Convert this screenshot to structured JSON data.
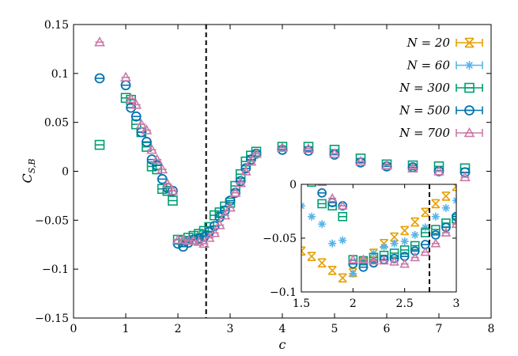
{
  "chart_data": {
    "type": "scatter",
    "title": "",
    "xlabel": "c",
    "ylabel": "C_{S,B}",
    "xlim": [
      0,
      8
    ],
    "ylim": [
      -0.15,
      0.15
    ],
    "xticks": [
      "0",
      "1",
      "2",
      "3",
      "4",
      "5",
      "6",
      "7",
      "8"
    ],
    "yticks": [
      "0.15",
      "0.1",
      "0.05",
      "0",
      "−0.05",
      "−0.1",
      "−0.15"
    ],
    "xtick_values": [
      0,
      1,
      2,
      3,
      4,
      5,
      6,
      7,
      8
    ],
    "ytick_values": [
      0.15,
      0.1,
      0.05,
      0,
      -0.05,
      -0.1,
      -0.15
    ],
    "vline": 2.54,
    "legend_position": "top-right",
    "series": [
      {
        "name": "N = 20",
        "marker": "x",
        "color": "#e69f00",
        "x": [
          1.5,
          1.6,
          1.7,
          1.8,
          1.9,
          2.0,
          2.1,
          2.2,
          2.3,
          2.4,
          2.5,
          2.6,
          2.7,
          2.8,
          2.9,
          3.0
        ],
        "y": [
          -0.062,
          -0.067,
          -0.073,
          -0.08,
          -0.087,
          -0.082,
          -0.071,
          -0.064,
          -0.055,
          -0.049,
          -0.043,
          -0.035,
          -0.026,
          -0.018,
          -0.011,
          -0.002
        ]
      },
      {
        "name": "N = 60",
        "marker": "star",
        "color": "#56b4e9",
        "x": [
          1.5,
          1.6,
          1.7,
          1.8,
          1.9,
          2.0,
          2.1,
          2.2,
          2.3,
          2.4,
          2.5,
          2.6,
          2.7,
          2.8,
          2.9,
          3.0
        ],
        "y": [
          -0.02,
          -0.03,
          -0.037,
          -0.055,
          -0.052,
          -0.083,
          -0.072,
          -0.064,
          -0.058,
          -0.055,
          -0.053,
          -0.047,
          -0.04,
          -0.03,
          -0.022,
          -0.015
        ]
      },
      {
        "name": "N = 300",
        "marker": "square",
        "color": "#009e73",
        "x": [
          0.5,
          1.0,
          1.1,
          1.2,
          1.3,
          1.4,
          1.5,
          1.6,
          1.7,
          1.8,
          1.9,
          2.0,
          2.1,
          2.2,
          2.3,
          2.4,
          2.5,
          2.6,
          2.7,
          2.8,
          2.9,
          3.0,
          3.1,
          3.2,
          3.3,
          3.4,
          3.5,
          4.0,
          4.5,
          5.0,
          5.5,
          6.0,
          6.5,
          7.0,
          7.5
        ],
        "y": [
          0.027,
          0.075,
          0.073,
          0.048,
          0.04,
          0.025,
          0.005,
          0.002,
          -0.018,
          -0.02,
          -0.03,
          -0.07,
          -0.071,
          -0.068,
          -0.066,
          -0.064,
          -0.061,
          -0.057,
          -0.045,
          -0.042,
          -0.036,
          -0.032,
          -0.015,
          -0.003,
          0.01,
          0.016,
          0.02,
          0.025,
          0.025,
          0.022,
          0.013,
          0.007,
          0.006,
          0.005,
          0.003
        ]
      },
      {
        "name": "N = 500",
        "marker": "circle",
        "color": "#0072b2",
        "x": [
          0.5,
          1.0,
          1.1,
          1.2,
          1.3,
          1.4,
          1.5,
          1.6,
          1.7,
          1.8,
          1.9,
          2.0,
          2.1,
          2.2,
          2.3,
          2.4,
          2.5,
          2.6,
          2.7,
          2.8,
          2.9,
          3.0,
          3.1,
          3.2,
          3.3,
          3.4,
          3.5,
          4.0,
          4.5,
          5.0,
          5.5,
          6.0,
          6.5,
          7.0,
          7.5
        ],
        "y": [
          0.095,
          0.088,
          0.065,
          0.056,
          0.04,
          0.03,
          0.012,
          0.006,
          -0.008,
          -0.017,
          -0.02,
          -0.074,
          -0.077,
          -0.073,
          -0.07,
          -0.069,
          -0.067,
          -0.062,
          -0.056,
          -0.047,
          -0.04,
          -0.03,
          -0.022,
          -0.01,
          0.003,
          0.012,
          0.018,
          0.022,
          0.021,
          0.017,
          0.009,
          0.005,
          0.004,
          0.0,
          -0.001
        ]
      },
      {
        "name": "N = 700",
        "marker": "triangle",
        "color": "#cc79a7",
        "x": [
          0.5,
          1.0,
          1.1,
          1.2,
          1.3,
          1.4,
          1.5,
          1.6,
          1.7,
          1.8,
          1.9,
          2.0,
          2.1,
          2.2,
          2.3,
          2.4,
          2.5,
          2.6,
          2.7,
          2.8,
          2.9,
          3.0,
          3.1,
          3.2,
          3.3,
          3.4,
          3.5,
          4.0,
          4.5,
          5.0,
          5.5,
          6.0,
          6.5,
          7.0,
          7.5
        ],
        "y": [
          0.132,
          0.096,
          0.074,
          0.068,
          0.048,
          0.042,
          0.022,
          0.012,
          0.002,
          -0.013,
          -0.02,
          -0.07,
          -0.07,
          -0.071,
          -0.071,
          -0.072,
          -0.074,
          -0.068,
          -0.063,
          -0.055,
          -0.045,
          -0.037,
          -0.022,
          -0.012,
          0.0,
          0.01,
          0.018,
          0.024,
          0.023,
          0.018,
          0.01,
          0.006,
          0.003,
          0.0,
          -0.006
        ]
      }
    ],
    "inset": {
      "xlim": [
        1.5,
        3.0
      ],
      "ylim": [
        -0.1,
        0.0
      ],
      "xticks": [
        "1.5",
        "2",
        "2.5",
        "3"
      ],
      "yticks": [
        "0",
        "−0.05",
        "−0.1"
      ],
      "xtick_values": [
        1.5,
        2.0,
        2.5,
        3.0
      ],
      "ytick_values": [
        0.0,
        -0.05,
        -0.1
      ],
      "vline": 2.74
    }
  }
}
